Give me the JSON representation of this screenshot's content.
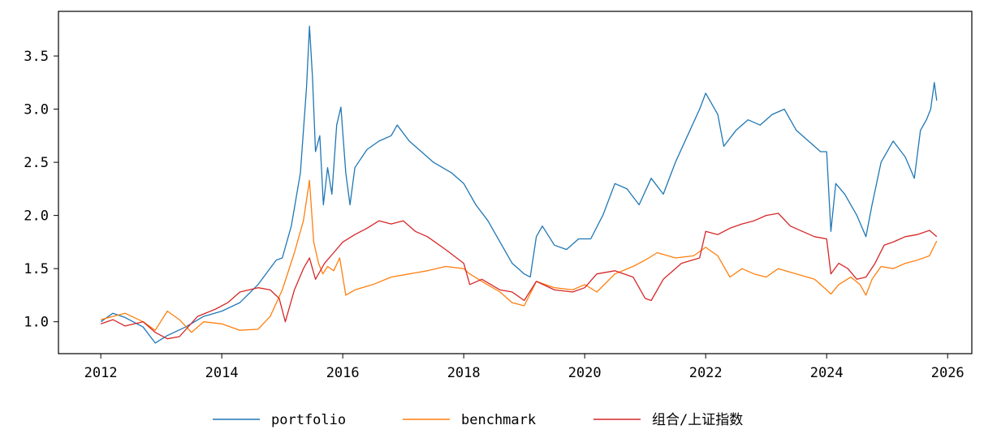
{
  "chart_data": {
    "type": "line",
    "title": "",
    "xlabel": "",
    "ylabel": "",
    "xlim": [
      2011.3,
      2026.4
    ],
    "ylim": [
      0.7,
      3.92
    ],
    "grid": false,
    "legend_position": "bottom-center",
    "x_ticks": [
      "2012",
      "2014",
      "2016",
      "2018",
      "2020",
      "2022",
      "2024",
      "2026"
    ],
    "y_ticks": [
      "1.0",
      "1.5",
      "2.0",
      "2.5",
      "3.0",
      "3.5"
    ],
    "series": [
      {
        "name": "portfolio",
        "color": "#1f77b4",
        "points": [
          [
            2012.0,
            1.0
          ],
          [
            2012.2,
            1.08
          ],
          [
            2012.4,
            1.04
          ],
          [
            2012.7,
            0.95
          ],
          [
            2012.9,
            0.8
          ],
          [
            2013.1,
            0.87
          ],
          [
            2013.4,
            0.95
          ],
          [
            2013.7,
            1.05
          ],
          [
            2014.0,
            1.1
          ],
          [
            2014.3,
            1.18
          ],
          [
            2014.6,
            1.35
          ],
          [
            2014.9,
            1.58
          ],
          [
            2015.0,
            1.6
          ],
          [
            2015.15,
            1.9
          ],
          [
            2015.3,
            2.4
          ],
          [
            2015.4,
            3.2
          ],
          [
            2015.45,
            3.78
          ],
          [
            2015.5,
            3.3
          ],
          [
            2015.55,
            2.6
          ],
          [
            2015.62,
            2.75
          ],
          [
            2015.68,
            2.1
          ],
          [
            2015.75,
            2.45
          ],
          [
            2015.82,
            2.2
          ],
          [
            2015.9,
            2.85
          ],
          [
            2015.97,
            3.02
          ],
          [
            2016.05,
            2.4
          ],
          [
            2016.12,
            2.1
          ],
          [
            2016.2,
            2.45
          ],
          [
            2016.4,
            2.62
          ],
          [
            2016.6,
            2.7
          ],
          [
            2016.8,
            2.75
          ],
          [
            2016.9,
            2.85
          ],
          [
            2017.1,
            2.7
          ],
          [
            2017.3,
            2.6
          ],
          [
            2017.5,
            2.5
          ],
          [
            2017.8,
            2.4
          ],
          [
            2018.0,
            2.3
          ],
          [
            2018.2,
            2.1
          ],
          [
            2018.4,
            1.95
          ],
          [
            2018.6,
            1.75
          ],
          [
            2018.8,
            1.55
          ],
          [
            2019.0,
            1.45
          ],
          [
            2019.1,
            1.42
          ],
          [
            2019.2,
            1.8
          ],
          [
            2019.3,
            1.9
          ],
          [
            2019.5,
            1.72
          ],
          [
            2019.7,
            1.68
          ],
          [
            2019.9,
            1.78
          ],
          [
            2020.1,
            1.78
          ],
          [
            2020.3,
            2.0
          ],
          [
            2020.5,
            2.3
          ],
          [
            2020.7,
            2.25
          ],
          [
            2020.9,
            2.1
          ],
          [
            2021.1,
            2.35
          ],
          [
            2021.3,
            2.2
          ],
          [
            2021.5,
            2.5
          ],
          [
            2021.7,
            2.75
          ],
          [
            2021.9,
            3.0
          ],
          [
            2022.0,
            3.15
          ],
          [
            2022.2,
            2.95
          ],
          [
            2022.3,
            2.65
          ],
          [
            2022.5,
            2.8
          ],
          [
            2022.7,
            2.9
          ],
          [
            2022.9,
            2.85
          ],
          [
            2023.1,
            2.95
          ],
          [
            2023.3,
            3.0
          ],
          [
            2023.5,
            2.8
          ],
          [
            2023.7,
            2.7
          ],
          [
            2023.9,
            2.6
          ],
          [
            2024.0,
            2.6
          ],
          [
            2024.07,
            1.85
          ],
          [
            2024.15,
            2.3
          ],
          [
            2024.3,
            2.2
          ],
          [
            2024.5,
            2.0
          ],
          [
            2024.65,
            1.8
          ],
          [
            2024.75,
            2.1
          ],
          [
            2024.9,
            2.5
          ],
          [
            2025.1,
            2.7
          ],
          [
            2025.3,
            2.55
          ],
          [
            2025.45,
            2.35
          ],
          [
            2025.55,
            2.8
          ],
          [
            2025.65,
            2.9
          ],
          [
            2025.72,
            3.0
          ],
          [
            2025.78,
            3.25
          ],
          [
            2025.82,
            3.08
          ]
        ]
      },
      {
        "name": "benchmark",
        "color": "#ff7f0e",
        "points": [
          [
            2012.0,
            1.02
          ],
          [
            2012.2,
            1.05
          ],
          [
            2012.4,
            1.08
          ],
          [
            2012.7,
            1.0
          ],
          [
            2012.9,
            0.92
          ],
          [
            2013.1,
            1.1
          ],
          [
            2013.3,
            1.02
          ],
          [
            2013.5,
            0.9
          ],
          [
            2013.7,
            1.0
          ],
          [
            2014.0,
            0.98
          ],
          [
            2014.3,
            0.92
          ],
          [
            2014.6,
            0.93
          ],
          [
            2014.8,
            1.05
          ],
          [
            2015.0,
            1.3
          ],
          [
            2015.2,
            1.65
          ],
          [
            2015.35,
            1.95
          ],
          [
            2015.45,
            2.33
          ],
          [
            2015.52,
            1.75
          ],
          [
            2015.6,
            1.55
          ],
          [
            2015.67,
            1.45
          ],
          [
            2015.75,
            1.52
          ],
          [
            2015.85,
            1.48
          ],
          [
            2015.95,
            1.6
          ],
          [
            2016.05,
            1.25
          ],
          [
            2016.2,
            1.3
          ],
          [
            2016.5,
            1.35
          ],
          [
            2016.8,
            1.42
          ],
          [
            2017.1,
            1.45
          ],
          [
            2017.4,
            1.48
          ],
          [
            2017.7,
            1.52
          ],
          [
            2018.0,
            1.5
          ],
          [
            2018.1,
            1.45
          ],
          [
            2018.3,
            1.38
          ],
          [
            2018.6,
            1.28
          ],
          [
            2018.8,
            1.18
          ],
          [
            2019.0,
            1.15
          ],
          [
            2019.2,
            1.38
          ],
          [
            2019.5,
            1.32
          ],
          [
            2019.8,
            1.3
          ],
          [
            2020.0,
            1.35
          ],
          [
            2020.2,
            1.28
          ],
          [
            2020.5,
            1.45
          ],
          [
            2020.8,
            1.52
          ],
          [
            2021.0,
            1.58
          ],
          [
            2021.2,
            1.65
          ],
          [
            2021.5,
            1.6
          ],
          [
            2021.8,
            1.62
          ],
          [
            2022.0,
            1.7
          ],
          [
            2022.2,
            1.62
          ],
          [
            2022.4,
            1.42
          ],
          [
            2022.6,
            1.5
          ],
          [
            2022.8,
            1.45
          ],
          [
            2023.0,
            1.42
          ],
          [
            2023.2,
            1.5
          ],
          [
            2023.5,
            1.45
          ],
          [
            2023.8,
            1.4
          ],
          [
            2024.0,
            1.3
          ],
          [
            2024.07,
            1.26
          ],
          [
            2024.2,
            1.35
          ],
          [
            2024.4,
            1.42
          ],
          [
            2024.55,
            1.35
          ],
          [
            2024.65,
            1.25
          ],
          [
            2024.75,
            1.4
          ],
          [
            2024.9,
            1.52
          ],
          [
            2025.1,
            1.5
          ],
          [
            2025.3,
            1.55
          ],
          [
            2025.5,
            1.58
          ],
          [
            2025.7,
            1.62
          ],
          [
            2025.82,
            1.76
          ]
        ]
      },
      {
        "name": "组合/上证指数",
        "color": "#d62728",
        "points": [
          [
            2012.0,
            0.98
          ],
          [
            2012.2,
            1.02
          ],
          [
            2012.4,
            0.96
          ],
          [
            2012.7,
            1.0
          ],
          [
            2012.9,
            0.9
          ],
          [
            2013.1,
            0.84
          ],
          [
            2013.3,
            0.86
          ],
          [
            2013.6,
            1.05
          ],
          [
            2013.9,
            1.12
          ],
          [
            2014.1,
            1.18
          ],
          [
            2014.3,
            1.28
          ],
          [
            2014.6,
            1.32
          ],
          [
            2014.8,
            1.3
          ],
          [
            2014.95,
            1.22
          ],
          [
            2015.05,
            1.0
          ],
          [
            2015.2,
            1.3
          ],
          [
            2015.35,
            1.5
          ],
          [
            2015.45,
            1.6
          ],
          [
            2015.55,
            1.4
          ],
          [
            2015.7,
            1.55
          ],
          [
            2015.85,
            1.65
          ],
          [
            2016.0,
            1.75
          ],
          [
            2016.2,
            1.82
          ],
          [
            2016.4,
            1.88
          ],
          [
            2016.6,
            1.95
          ],
          [
            2016.8,
            1.92
          ],
          [
            2017.0,
            1.95
          ],
          [
            2017.2,
            1.85
          ],
          [
            2017.4,
            1.8
          ],
          [
            2017.7,
            1.68
          ],
          [
            2018.0,
            1.55
          ],
          [
            2018.1,
            1.35
          ],
          [
            2018.3,
            1.4
          ],
          [
            2018.6,
            1.3
          ],
          [
            2018.8,
            1.28
          ],
          [
            2019.0,
            1.2
          ],
          [
            2019.2,
            1.38
          ],
          [
            2019.5,
            1.3
          ],
          [
            2019.8,
            1.28
          ],
          [
            2020.0,
            1.32
          ],
          [
            2020.2,
            1.45
          ],
          [
            2020.5,
            1.48
          ],
          [
            2020.8,
            1.42
          ],
          [
            2021.0,
            1.22
          ],
          [
            2021.1,
            1.2
          ],
          [
            2021.3,
            1.4
          ],
          [
            2021.6,
            1.55
          ],
          [
            2021.9,
            1.6
          ],
          [
            2022.0,
            1.85
          ],
          [
            2022.2,
            1.82
          ],
          [
            2022.4,
            1.88
          ],
          [
            2022.6,
            1.92
          ],
          [
            2022.8,
            1.95
          ],
          [
            2023.0,
            2.0
          ],
          [
            2023.2,
            2.02
          ],
          [
            2023.4,
            1.9
          ],
          [
            2023.6,
            1.85
          ],
          [
            2023.8,
            1.8
          ],
          [
            2024.0,
            1.78
          ],
          [
            2024.07,
            1.45
          ],
          [
            2024.2,
            1.55
          ],
          [
            2024.35,
            1.5
          ],
          [
            2024.5,
            1.4
          ],
          [
            2024.65,
            1.42
          ],
          [
            2024.8,
            1.55
          ],
          [
            2024.95,
            1.72
          ],
          [
            2025.1,
            1.75
          ],
          [
            2025.3,
            1.8
          ],
          [
            2025.5,
            1.82
          ],
          [
            2025.7,
            1.86
          ],
          [
            2025.82,
            1.8
          ]
        ]
      }
    ]
  }
}
